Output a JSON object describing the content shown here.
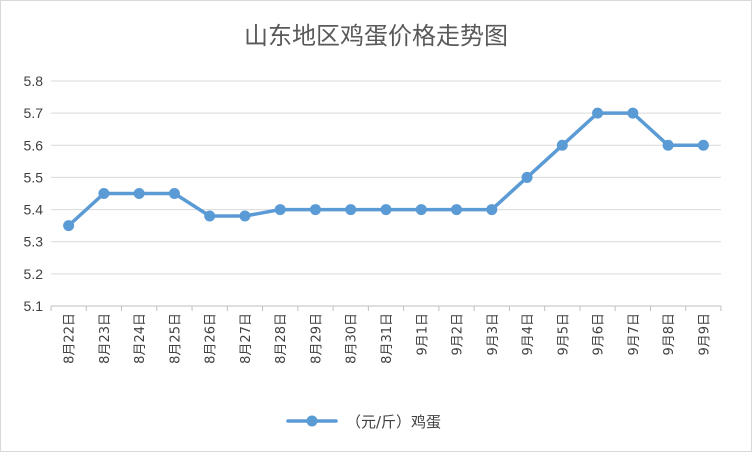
{
  "chart_data": {
    "type": "line",
    "title": "山东地区鸡蛋价格走势图",
    "categories": [
      "8月22日",
      "8月23日",
      "8月24日",
      "8月25日",
      "8月26日",
      "8月27日",
      "8月28日",
      "8月29日",
      "8月30日",
      "8月31日",
      "9月1日",
      "9月2日",
      "9月3日",
      "9月4日",
      "9月5日",
      "9月6日",
      "9月7日",
      "9月8日",
      "9月9日"
    ],
    "series": [
      {
        "name": "（元/斤）鸡蛋",
        "values": [
          5.35,
          5.45,
          5.45,
          5.45,
          5.38,
          5.38,
          5.4,
          5.4,
          5.4,
          5.4,
          5.4,
          5.4,
          5.4,
          5.5,
          5.6,
          5.7,
          5.7,
          5.6,
          5.6
        ]
      }
    ],
    "yticks": [
      "5.1",
      "5.2",
      "5.3",
      "5.4",
      "5.5",
      "5.6",
      "5.7",
      "5.8"
    ],
    "ylim": [
      5.1,
      5.8
    ],
    "grid": true,
    "legend": "bottom",
    "colors": {
      "series": "#5b9bd5",
      "grid": "#d9d9d9",
      "text": "#404040"
    }
  }
}
